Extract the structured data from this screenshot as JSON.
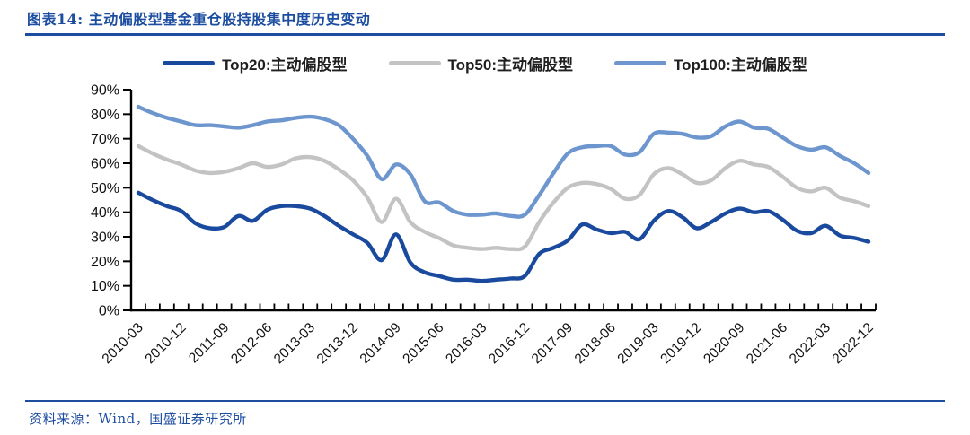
{
  "figure": {
    "title": "图表14: 主动偏股型基金重仓股持股集中度历史变动",
    "source": "资料来源：Wind，国盛证券研究所"
  },
  "colors": {
    "accent_blue": "#1c4da0",
    "axis_black": "#000000",
    "label_black": "#111111",
    "top20": "#1a4a9e",
    "top50": "#c3c3c3",
    "top100": "#6d96cf"
  },
  "legend": [
    {
      "label": "Top20:主动偏股型",
      "series": "top20"
    },
    {
      "label": "Top50:主动偏股型",
      "series": "top50"
    },
    {
      "label": "Top100:主动偏股型",
      "series": "top100"
    }
  ],
  "chart_data": {
    "type": "line",
    "title": "主动偏股型基金重仓股持股集中度历史变动",
    "xlabel": "",
    "ylabel": "",
    "ylim": [
      0,
      90
    ],
    "y_tick_step": 10,
    "y_tick_labels": [
      "0%",
      "10%",
      "20%",
      "30%",
      "40%",
      "50%",
      "60%",
      "70%",
      "80%",
      "90%"
    ],
    "grid": false,
    "legend_position": "top",
    "x_label_every": 3,
    "x": [
      "2010-03",
      "2010-06",
      "2010-09",
      "2010-12",
      "2011-03",
      "2011-06",
      "2011-09",
      "2011-12",
      "2012-03",
      "2012-06",
      "2012-09",
      "2012-12",
      "2013-03",
      "2013-06",
      "2013-09",
      "2013-12",
      "2014-03",
      "2014-06",
      "2014-09",
      "2014-12",
      "2015-03",
      "2015-06",
      "2015-09",
      "2015-12",
      "2016-03",
      "2016-06",
      "2016-09",
      "2016-12",
      "2017-03",
      "2017-06",
      "2017-09",
      "2017-12",
      "2018-03",
      "2018-06",
      "2018-09",
      "2018-12",
      "2019-03",
      "2019-06",
      "2019-09",
      "2019-12",
      "2020-03",
      "2020-06",
      "2020-09",
      "2020-12",
      "2021-03",
      "2021-06",
      "2021-09",
      "2021-12",
      "2022-03",
      "2022-06",
      "2022-09",
      "2022-12"
    ],
    "x_tick_labels": [
      "2010-03",
      "2010-12",
      "2011-09",
      "2012-06",
      "2013-03",
      "2013-12",
      "2014-09",
      "2015-06",
      "2016-03",
      "2016-12",
      "2017-09",
      "2018-06",
      "2019-03",
      "2019-12",
      "2020-09",
      "2021-06",
      "2022-03",
      "2022-12"
    ],
    "series": [
      {
        "name": "Top20:主动偏股型",
        "color_key": "top20",
        "values": [
          48,
          45,
          42.5,
          40.5,
          35.5,
          33.5,
          34,
          38.5,
          36.5,
          41,
          42.5,
          42.5,
          41.5,
          38.5,
          34.5,
          31,
          27.5,
          20.5,
          31,
          19.5,
          15.5,
          14,
          12.5,
          12.5,
          12,
          12.5,
          13,
          14,
          23,
          25.5,
          28.5,
          35,
          33,
          31.5,
          32,
          29,
          36.5,
          40.5,
          38,
          33.5,
          36,
          39.5,
          41.5,
          40,
          40.5,
          37,
          32.5,
          31.5,
          34.5,
          30.5,
          29.5,
          28
        ]
      },
      {
        "name": "Top50:主动偏股型",
        "color_key": "top50",
        "values": [
          67,
          64,
          61.5,
          59.5,
          57,
          56,
          56.5,
          58,
          60,
          58.5,
          59.5,
          62,
          62.5,
          61,
          57.5,
          53,
          46,
          36,
          45.5,
          36,
          32,
          29.5,
          26.5,
          25.5,
          25,
          25.5,
          25,
          26,
          36,
          44,
          50,
          52,
          51.5,
          49.5,
          45.5,
          47,
          55.5,
          58,
          55.5,
          52,
          53,
          58,
          61,
          59.5,
          58.5,
          54.5,
          50,
          48.5,
          50,
          46,
          44.5,
          42.5
        ]
      },
      {
        "name": "Top100:主动偏股型",
        "color_key": "top100",
        "values": [
          83,
          80.5,
          78.5,
          77,
          75.5,
          75.5,
          75,
          74.5,
          75.5,
          77,
          77.5,
          78.5,
          79,
          78,
          75.5,
          70,
          63,
          53.5,
          59.5,
          55.5,
          44.5,
          44,
          40.5,
          39,
          39,
          39.5,
          38.5,
          39,
          47,
          56,
          64,
          66.5,
          67,
          67,
          63.5,
          64.5,
          72,
          72.5,
          72,
          70.5,
          71,
          75,
          77,
          74.5,
          74,
          70.5,
          67,
          65.5,
          66.5,
          63,
          60,
          56
        ]
      }
    ]
  }
}
